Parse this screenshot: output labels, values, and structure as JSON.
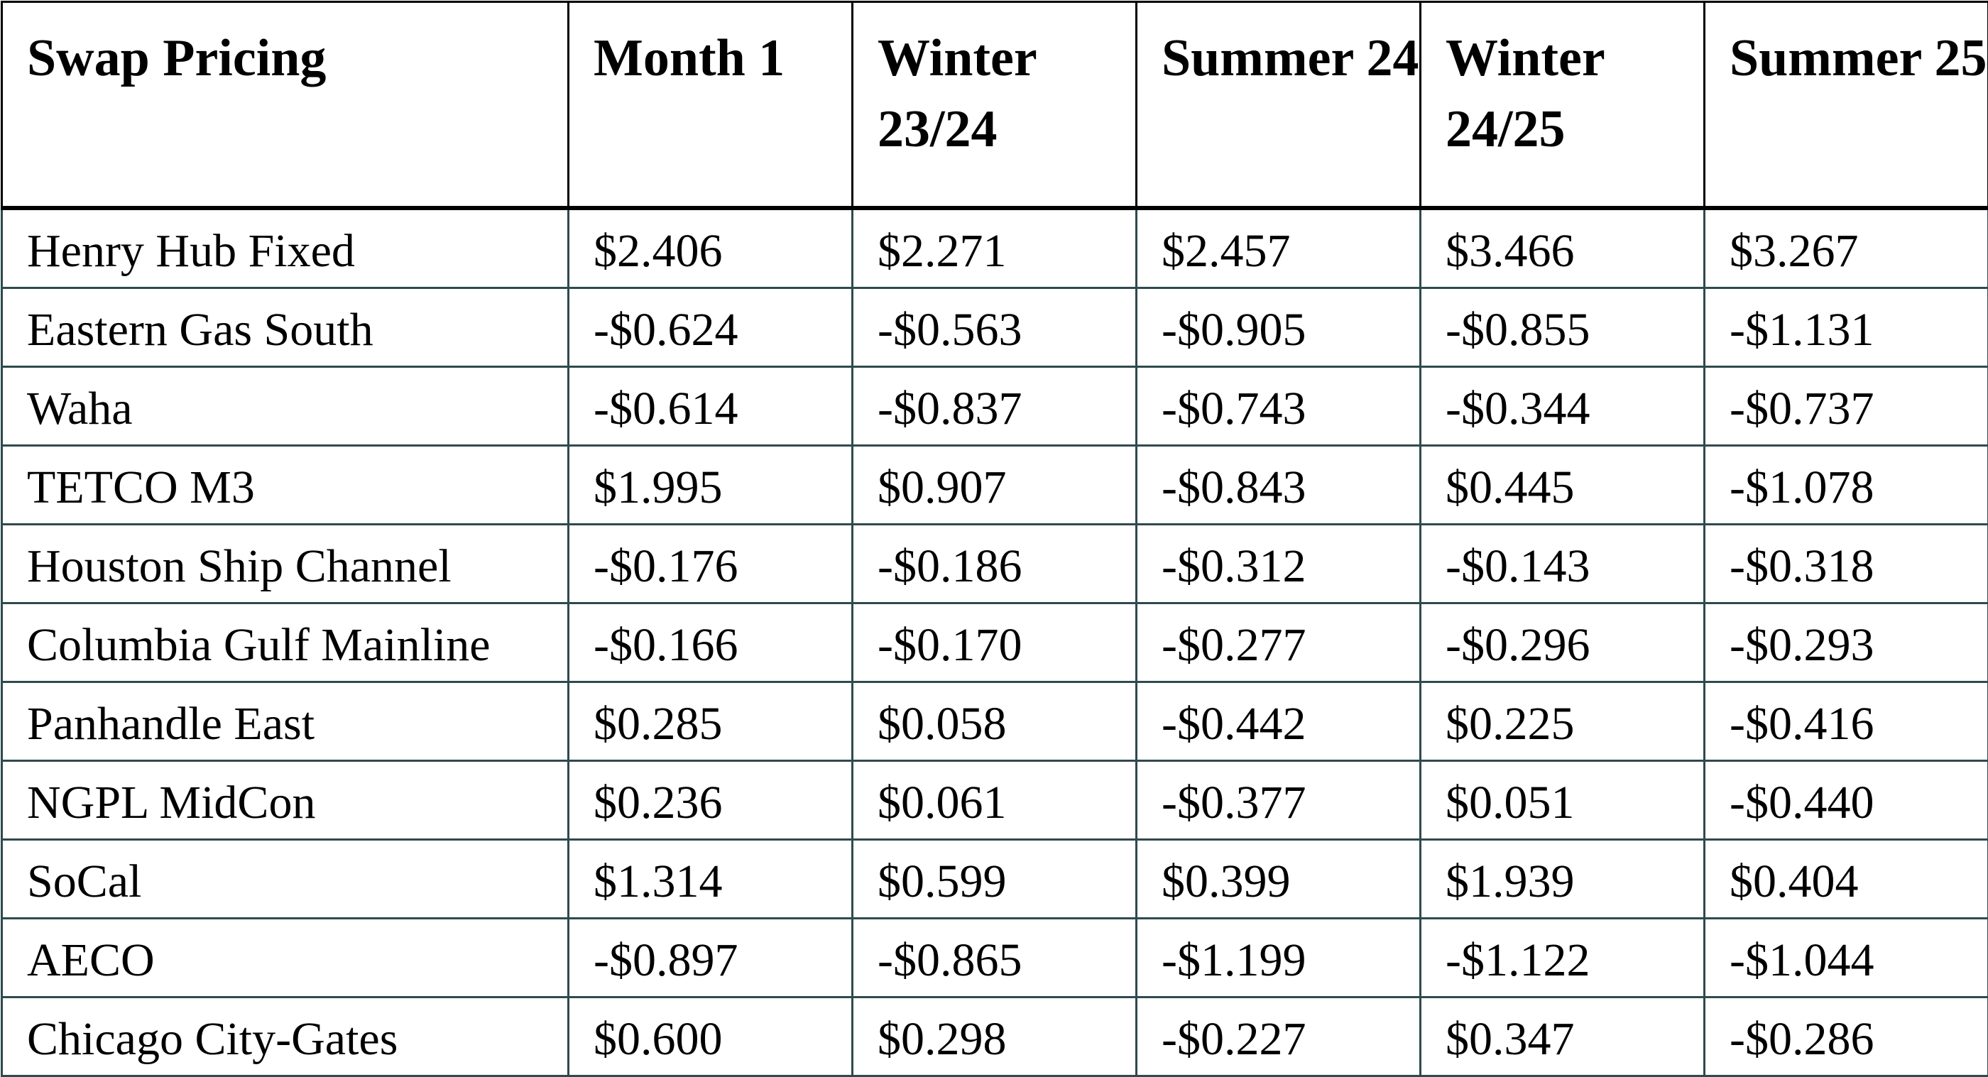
{
  "table": {
    "headers": [
      "Swap Pricing",
      "Month 1",
      "Winter 23/24",
      "Summer 24",
      "Winter 24/25",
      "Summer 25"
    ],
    "rows": [
      [
        "Henry Hub Fixed",
        "$2.406",
        "$2.271",
        "$2.457",
        "$3.466",
        "$3.267"
      ],
      [
        "Eastern Gas South",
        "-$0.624",
        "-$0.563",
        "-$0.905",
        "-$0.855",
        "-$1.131"
      ],
      [
        "Waha",
        "-$0.614",
        "-$0.837",
        "-$0.743",
        "-$0.344",
        "-$0.737"
      ],
      [
        "TETCO M3",
        "$1.995",
        "$0.907",
        "-$0.843",
        "$0.445",
        "-$1.078"
      ],
      [
        "Houston Ship Channel",
        "-$0.176",
        "-$0.186",
        "-$0.312",
        "-$0.143",
        "-$0.318"
      ],
      [
        "Columbia Gulf Mainline",
        "-$0.166",
        "-$0.170",
        "-$0.277",
        "-$0.296",
        "-$0.293"
      ],
      [
        "Panhandle East",
        "$0.285",
        "$0.058",
        "-$0.442",
        "$0.225",
        "-$0.416"
      ],
      [
        "NGPL MidCon",
        "$0.236",
        "$0.061",
        "-$0.377",
        "$0.051",
        "-$0.440"
      ],
      [
        "SoCal",
        "$1.314",
        "$0.599",
        "$0.399",
        "$1.939",
        "$0.404"
      ],
      [
        "AECO",
        "-$0.897",
        "-$0.865",
        "-$1.199",
        "-$1.122",
        "-$1.044"
      ],
      [
        "Chicago City-Gates",
        "$0.600",
        "$0.298",
        "-$0.227",
        "$0.347",
        "-$0.286"
      ]
    ],
    "colors": {
      "header_border": "#000000",
      "body_border": "#2e4a4e"
    }
  }
}
